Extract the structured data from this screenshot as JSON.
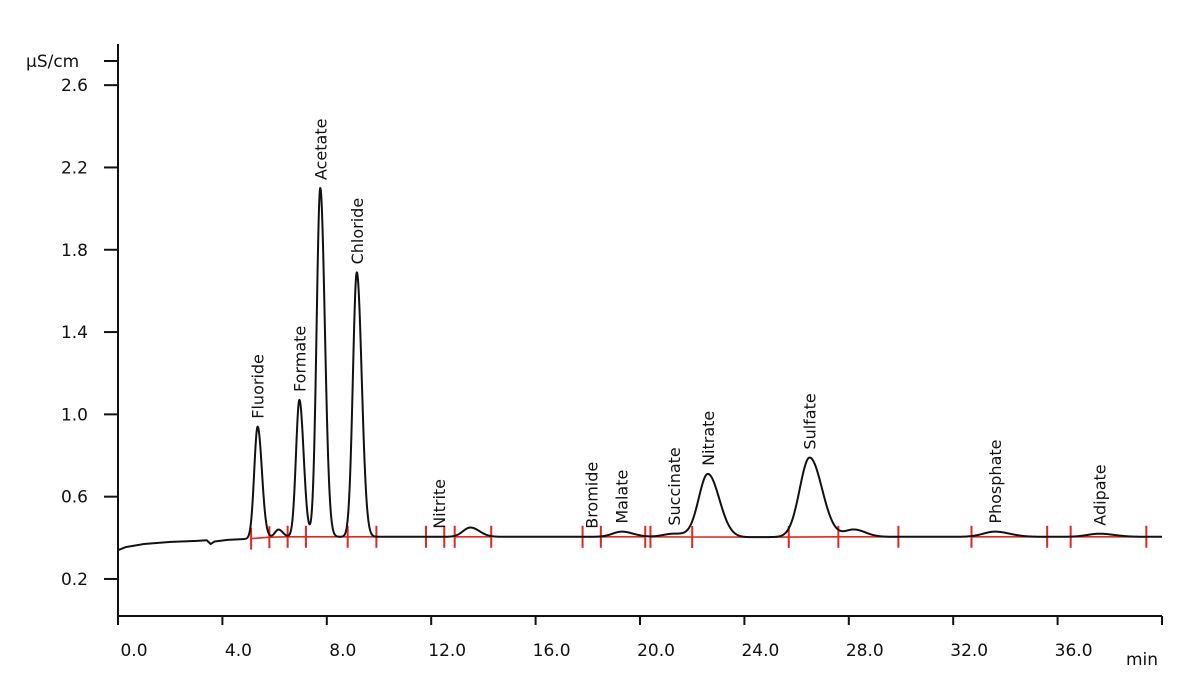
{
  "chart_data": {
    "type": "line",
    "xlabel": "min",
    "ylabel": "µS/cm",
    "xlim": [
      0,
      40
    ],
    "ylim": [
      0.02,
      2.8
    ],
    "x_ticks": [
      "0.0",
      "4.0",
      "8.0",
      "12.0",
      "16.0",
      "20.0",
      "24.0",
      "28.0",
      "32.0",
      "36.0"
    ],
    "y_ticks": [
      "0.2",
      "0.6",
      "1.0",
      "1.4",
      "1.8",
      "2.2",
      "2.6"
    ],
    "grid": false,
    "colors": {
      "trace": "#111111",
      "baseline": "#e0281f",
      "axis": "#111111"
    },
    "baseline_trace": [
      [
        0.0,
        0.34
      ],
      [
        0.3,
        0.355
      ],
      [
        1.0,
        0.37
      ],
      [
        2.0,
        0.38
      ],
      [
        3.0,
        0.385
      ],
      [
        3.4,
        0.388
      ],
      [
        3.55,
        0.37
      ],
      [
        3.7,
        0.382
      ],
      [
        4.2,
        0.39
      ],
      [
        5.0,
        0.395
      ],
      [
        6.0,
        0.405
      ],
      [
        9.0,
        0.405
      ],
      [
        12.0,
        0.405
      ],
      [
        16.0,
        0.405
      ],
      [
        20.0,
        0.405
      ],
      [
        24.0,
        0.403
      ],
      [
        28.0,
        0.405
      ],
      [
        32.0,
        0.405
      ],
      [
        36.0,
        0.405
      ],
      [
        40.0,
        0.405
      ]
    ],
    "peaks": [
      {
        "name": "Fluoride",
        "rt": 5.35,
        "height": 0.94,
        "width": 0.13
      },
      {
        "name": "",
        "rt": 6.15,
        "height": 0.44,
        "width": 0.13
      },
      {
        "name": "Formate",
        "rt": 6.95,
        "height": 1.07,
        "width": 0.13
      },
      {
        "name": "Acetate",
        "rt": 7.75,
        "height": 2.1,
        "width": 0.14
      },
      {
        "name": "Chloride",
        "rt": 9.15,
        "height": 1.69,
        "width": 0.15
      },
      {
        "name": "Nitrite",
        "rt": 12.3,
        "height": 0.405,
        "width": 0.3
      },
      {
        "name": "",
        "rt": 13.5,
        "height": 0.45,
        "width": 0.28
      },
      {
        "name": "Bromide",
        "rt": 18.15,
        "height": 0.405,
        "width": 0.3
      },
      {
        "name": "Malate",
        "rt": 19.3,
        "height": 0.43,
        "width": 0.35
      },
      {
        "name": "Succinate",
        "rt": 21.3,
        "height": 0.42,
        "width": 0.4
      },
      {
        "name": "Nitrate",
        "rt": 22.6,
        "height": 0.71,
        "width": 0.35
      },
      {
        "name": "Sulfate",
        "rt": 26.5,
        "height": 0.79,
        "width": 0.38
      },
      {
        "name": "",
        "rt": 28.2,
        "height": 0.44,
        "width": 0.35
      },
      {
        "name": "Phosphate",
        "rt": 33.6,
        "height": 0.43,
        "width": 0.45
      },
      {
        "name": "Adipate",
        "rt": 37.6,
        "height": 0.42,
        "width": 0.45
      }
    ],
    "integration_baseline": [
      [
        5.1,
        5.8
      ],
      [
        5.8,
        6.5
      ],
      [
        6.5,
        7.2
      ],
      [
        7.2,
        8.8
      ],
      [
        8.8,
        9.9
      ],
      [
        11.8,
        12.5
      ],
      [
        12.9,
        14.3
      ],
      [
        17.8,
        18.5
      ],
      [
        18.5,
        20.2
      ],
      [
        20.4,
        22.0
      ],
      [
        22.0,
        25.7
      ],
      [
        25.7,
        27.6
      ],
      [
        27.6,
        29.9
      ],
      [
        32.7,
        35.6
      ],
      [
        36.5,
        39.4
      ]
    ],
    "integration_marks": [
      5.1,
      5.8,
      6.5,
      7.2,
      8.8,
      9.9,
      11.8,
      12.5,
      12.9,
      14.3,
      17.8,
      18.5,
      20.2,
      20.4,
      22.0,
      25.7,
      27.6,
      29.9,
      32.7,
      35.6,
      36.5,
      39.4
    ]
  }
}
